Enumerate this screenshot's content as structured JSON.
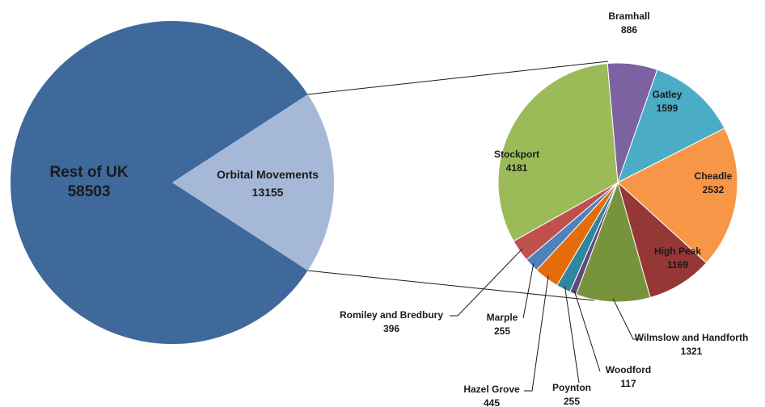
{
  "chart_data": {
    "type": "pie",
    "variant": "pie-of-pie",
    "title": "",
    "primary": [
      {
        "name": "Rest of UK",
        "value": 58503,
        "color": "#3F689B"
      },
      {
        "name": "Orbital Movements",
        "value": 13155,
        "color": "#A6B8D7"
      }
    ],
    "secondary": [
      {
        "name": "Bramhall",
        "value": 886,
        "color": "#7D62A1"
      },
      {
        "name": "Gatley",
        "value": 1599,
        "color": "#4BACC6"
      },
      {
        "name": "Cheadle",
        "value": 2532,
        "color": "#F79646"
      },
      {
        "name": "High Peak",
        "value": 1169,
        "color": "#953735"
      },
      {
        "name": "Wilmslow and Handforth",
        "value": 1321,
        "color": "#77933C"
      },
      {
        "name": "Woodford",
        "value": 117,
        "color": "#604A7B"
      },
      {
        "name": "Poynton",
        "value": 255,
        "color": "#31859C"
      },
      {
        "name": "Hazel Grove",
        "value": 445,
        "color": "#E46C0A"
      },
      {
        "name": "Marple",
        "value": 255,
        "color": "#4F81BD"
      },
      {
        "name": "Romiley and Bredbury",
        "value": 396,
        "color": "#C0504D"
      },
      {
        "name": "Stockport",
        "value": 4181,
        "color": "#9BBB59"
      }
    ]
  }
}
